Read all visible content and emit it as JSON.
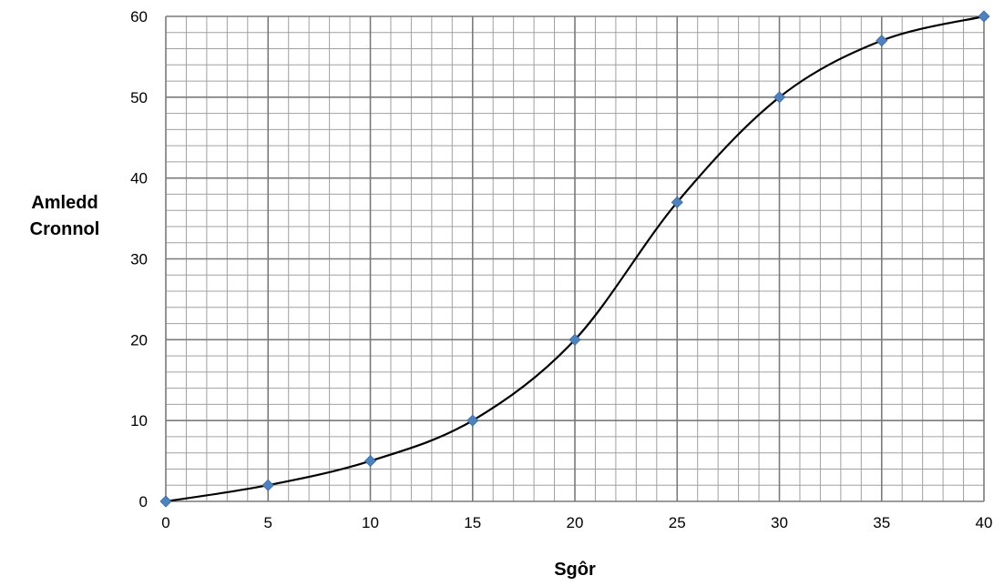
{
  "chart_data": {
    "type": "line",
    "xlabel": "Sgôr",
    "ylabel_lines": [
      "Amledd",
      "Cronnol"
    ],
    "xlim": [
      0,
      40
    ],
    "ylim": [
      0,
      60
    ],
    "x_ticks": [
      0,
      5,
      10,
      15,
      20,
      25,
      30,
      35,
      40
    ],
    "y_ticks": [
      0,
      10,
      20,
      30,
      40,
      50,
      60
    ],
    "grid": true,
    "grid_minor_x_step": 1,
    "grid_minor_y_step": 2,
    "series": [
      {
        "x": [
          0,
          5,
          10,
          15,
          20,
          25,
          30,
          35,
          40
        ],
        "y": [
          0,
          2,
          5,
          10,
          20,
          37,
          50,
          57,
          60
        ],
        "line_color": "#000000",
        "marker": "diamond",
        "marker_color": "#4f81bd"
      }
    ]
  }
}
